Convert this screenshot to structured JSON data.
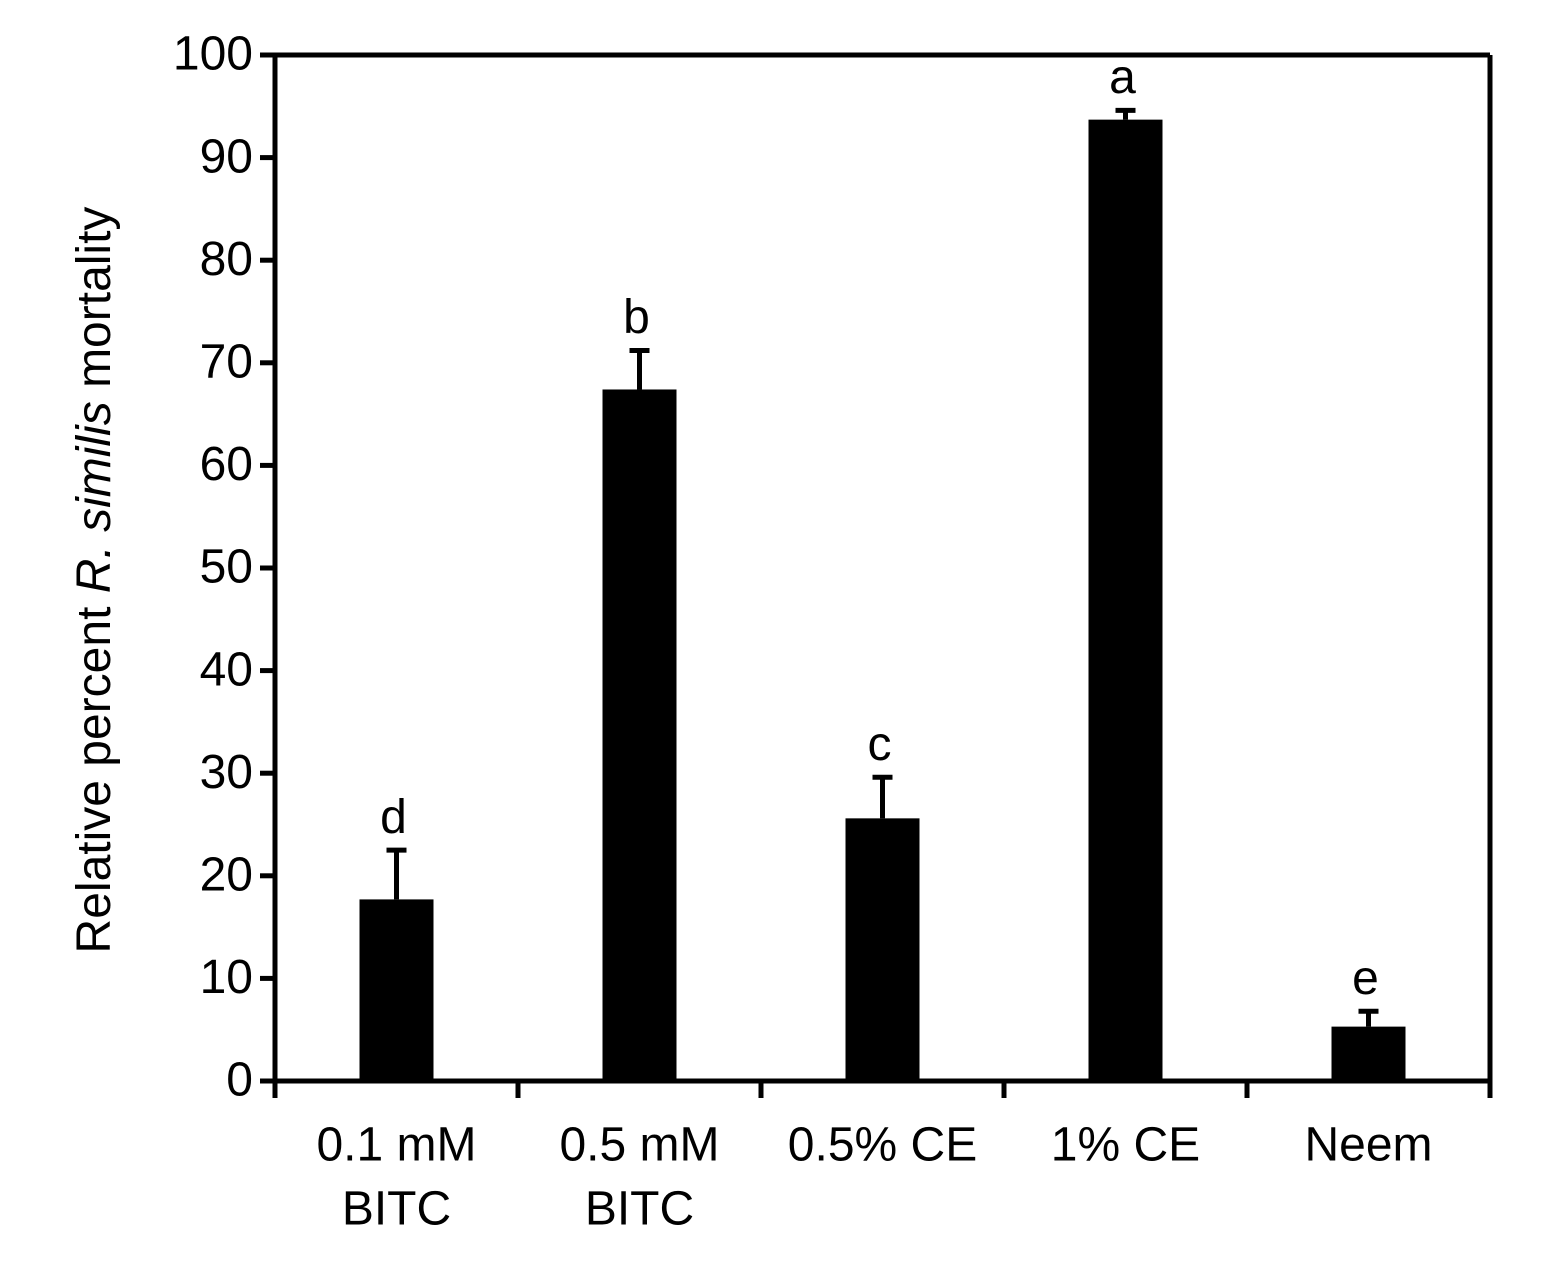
{
  "chart_data": {
    "type": "bar",
    "ylabel": [
      "Relative percent ",
      "R. similis",
      " mortality"
    ],
    "categories": [
      [
        "0.1 mM",
        "BITC"
      ],
      [
        "0.5 mM",
        "BITC"
      ],
      [
        "0.5% CE"
      ],
      [
        "1% CE"
      ],
      [
        "Neem"
      ]
    ],
    "values": [
      17.7,
      67.4,
      25.6,
      93.7,
      5.3
    ],
    "errors": [
      4.8,
      3.8,
      4.0,
      0.9,
      1.5
    ],
    "annotations": [
      "d",
      "b",
      "c",
      "a",
      "e"
    ],
    "color": "#000000",
    "ylim": [
      0,
      100
    ],
    "yticks": [
      0,
      10,
      20,
      30,
      40,
      50,
      60,
      70,
      80,
      90,
      100
    ]
  }
}
